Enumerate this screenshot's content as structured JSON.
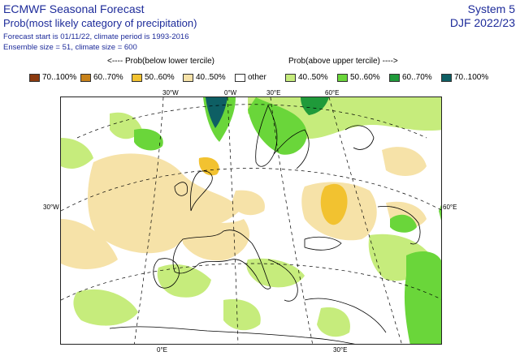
{
  "header": {
    "title": "ECMWF Seasonal Forecast",
    "subtitle": "Prob(most likely category of precipitation)",
    "forecast_line": "Forecast start is 01/11/22, climate period is 1993-2016",
    "ensemble_line": "Ensemble size = 51, climate size = 600",
    "system": "System 5",
    "period": "DJF 2022/23"
  },
  "legend": {
    "below_caption": "<---- Prob(below lower tercile)",
    "above_caption": "Prob(above upper tercile) ---->",
    "items": [
      {
        "label": "70..100%",
        "color": "#8b3a0e"
      },
      {
        "label": "60..70%",
        "color": "#c8821a"
      },
      {
        "label": "50..60%",
        "color": "#f2c230"
      },
      {
        "label": "40..50%",
        "color": "#f6e2a8"
      },
      {
        "label": "other",
        "color": "#ffffff"
      },
      {
        "label": "40..50%",
        "color": "#c6ec7c"
      },
      {
        "label": "50..60%",
        "color": "#6ad63a"
      },
      {
        "label": "60..70%",
        "color": "#1f9a3a"
      },
      {
        "label": "70..100%",
        "color": "#0e5f64"
      }
    ]
  },
  "map": {
    "graticule_labels": {
      "lon_30w": "30°W",
      "lon_0": "0°W",
      "lon_30e_top": "30°E",
      "lon_60e_top": "60°E",
      "lat_30w": "30°W",
      "lat_60e": "60°E",
      "lon_0e_bottom": "0°E",
      "lon_30e_bottom": "30°E"
    }
  }
}
